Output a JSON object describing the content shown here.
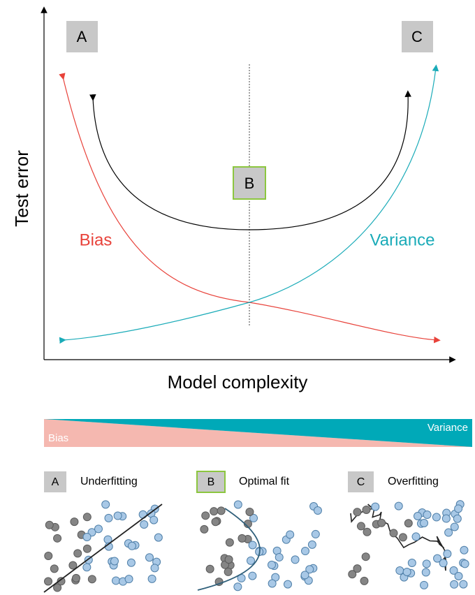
{
  "top_chart": {
    "badge_a": "A",
    "badge_b": "B",
    "badge_c": "C",
    "y_axis_label": "Test error",
    "x_axis_label": "Model complexity",
    "bias_label": "Bias",
    "variance_label": "Variance"
  },
  "gradient_bar": {
    "left_label": "Bias",
    "right_label": "Variance"
  },
  "panels": [
    {
      "badge": "A",
      "label": "Underfitting"
    },
    {
      "badge": "B",
      "label": "Optimal fit"
    },
    {
      "badge": "C",
      "label": "Overfitting"
    }
  ]
}
